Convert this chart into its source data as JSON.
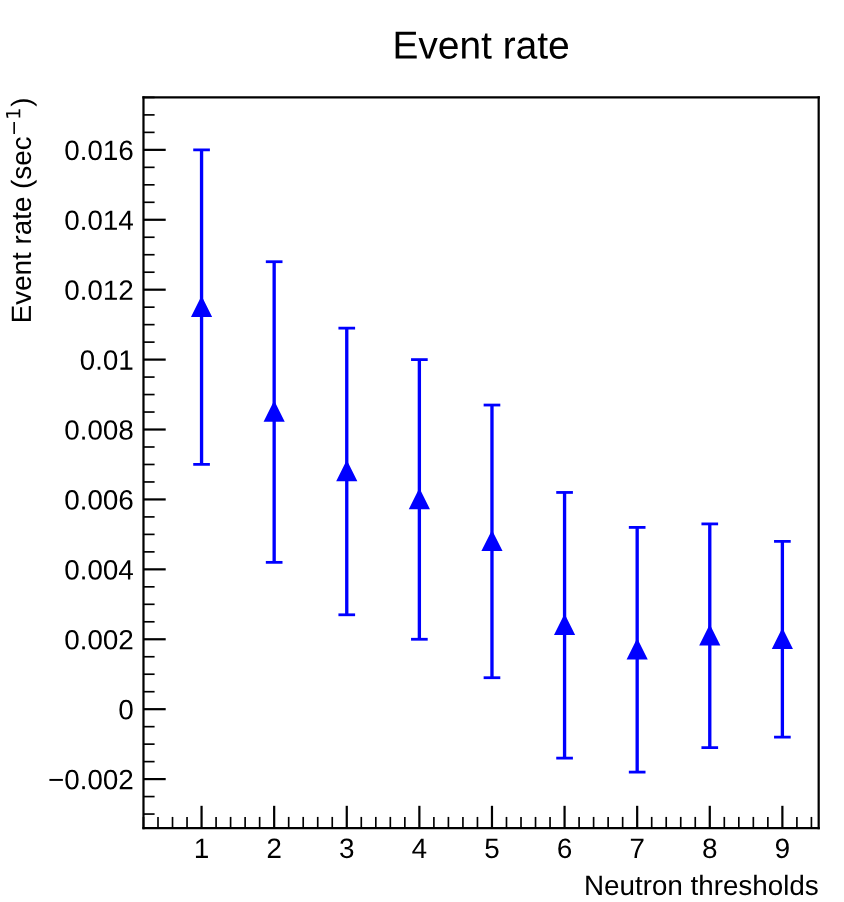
{
  "chart_data": {
    "type": "scatter",
    "title": "Event rate",
    "xlabel": "Neutron thresholds",
    "ylabel": "Event rate (sec$^{−1}$)",
    "x": [
      1,
      2,
      3,
      4,
      5,
      6,
      7,
      8,
      9
    ],
    "series": [
      {
        "color": "#0000ff",
        "values": [
          0.0115,
          0.0085,
          0.0068,
          0.006,
          0.0048,
          0.0024,
          0.0017,
          0.0021,
          0.002
        ],
        "errors": [
          0.0045,
          0.0043,
          0.0041,
          0.004,
          0.0039,
          0.0038,
          0.0035,
          0.0032,
          0.0028
        ]
      }
    ],
    "marker": "triangle",
    "grid": false,
    "xlim": [
      0.2,
      9.5
    ],
    "xticks": [
      1,
      2,
      3,
      4,
      5,
      6,
      7,
      8,
      9
    ],
    "ylim": [
      -0.0034,
      0.0175
    ],
    "yticks": [
      {
        "value": -0.002,
        "label": "−0.002"
      },
      0,
      0.002,
      0.004,
      0.006,
      0.008,
      {
        "value": 0.01,
        "label": "0.01"
      },
      0.012,
      0.014,
      0.016
    ]
  }
}
